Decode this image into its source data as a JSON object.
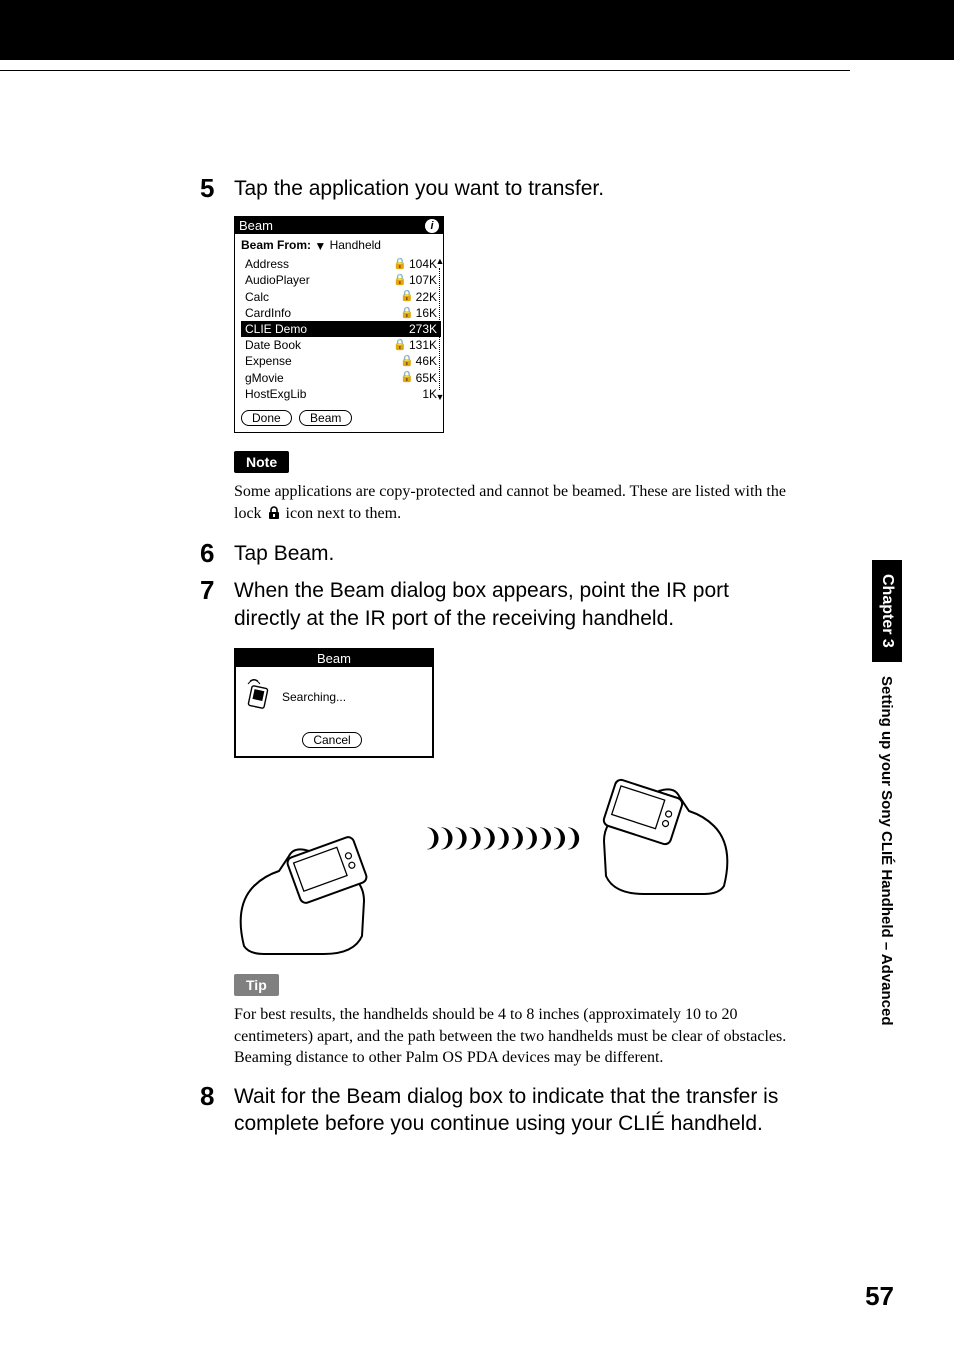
{
  "page_number": "57",
  "sidebar": {
    "chapter_label": "Chapter 3",
    "section_title": "Setting up your Sony CLIÉ Handheld – Advanced"
  },
  "steps": {
    "s5": {
      "num": "5",
      "text": "Tap the application you want to transfer."
    },
    "s6": {
      "num": "6",
      "text": "Tap Beam."
    },
    "s7": {
      "num": "7",
      "text": "When the Beam dialog box appears, point the IR port directly at the IR port of the receiving handheld."
    },
    "s8": {
      "num": "8",
      "text": "Wait for the Beam dialog box to indicate that the transfer is complete before you continue using your CLIÉ handheld."
    }
  },
  "note": {
    "label": "Note",
    "body_before": "Some applications are copy-protected and cannot be beamed. These are listed with the lock ",
    "body_after": " icon next to them."
  },
  "tip": {
    "label": "Tip",
    "body": "For best results, the handhelds should be 4 to 8 inches (approximately 10 to 20 centimeters) apart, and the path between the two handhelds must be clear of obstacles. Beaming distance to other Palm OS PDA devices may be different."
  },
  "palm_screen": {
    "title": "Beam",
    "from_label": "Beam From:",
    "from_value": "Handheld",
    "selected_index": 4,
    "items": [
      {
        "name": "Address",
        "size": "104K",
        "locked": true
      },
      {
        "name": "AudioPlayer",
        "size": "107K",
        "locked": true
      },
      {
        "name": "Calc",
        "size": "22K",
        "locked": true
      },
      {
        "name": "CardInfo",
        "size": "16K",
        "locked": true
      },
      {
        "name": "CLIE Demo",
        "size": "273K",
        "locked": false
      },
      {
        "name": "Date Book",
        "size": "131K",
        "locked": true
      },
      {
        "name": "Expense",
        "size": "46K",
        "locked": true
      },
      {
        "name": "gMovie",
        "size": "65K",
        "locked": true
      },
      {
        "name": "HostExgLib",
        "size": "1K",
        "locked": false
      }
    ],
    "buttons": {
      "done": "Done",
      "beam": "Beam"
    }
  },
  "beam_dialog": {
    "title": "Beam",
    "status": "Searching...",
    "cancel": "Cancel"
  },
  "colors": {
    "black": "#000000",
    "white": "#ffffff",
    "gray": "#808080"
  }
}
